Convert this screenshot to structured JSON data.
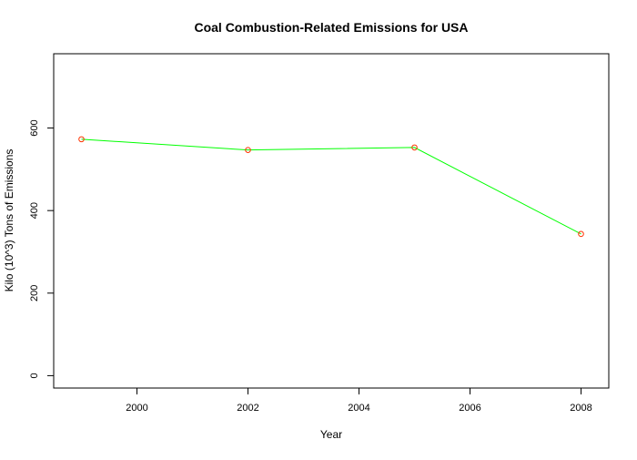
{
  "chart_data": {
    "type": "line",
    "title": "Coal Combustion-Related Emissions for USA",
    "xlabel": "Year",
    "ylabel": "Kilo (10^3) Tons of Emissions",
    "x": [
      1999,
      2002,
      2005,
      2008
    ],
    "series": [
      {
        "values": [
          572.8,
          546.8,
          552.9,
          343.4
        ]
      }
    ],
    "xlim": [
      1998.5,
      2008.5
    ],
    "ylim": [
      -30,
      780
    ],
    "xticks": [
      2000,
      2002,
      2004,
      2006,
      2008
    ],
    "yticks": [
      0,
      200,
      400,
      600
    ],
    "grid": false,
    "colors": {
      "line": "#00ff00",
      "points": "#ff3300"
    }
  }
}
